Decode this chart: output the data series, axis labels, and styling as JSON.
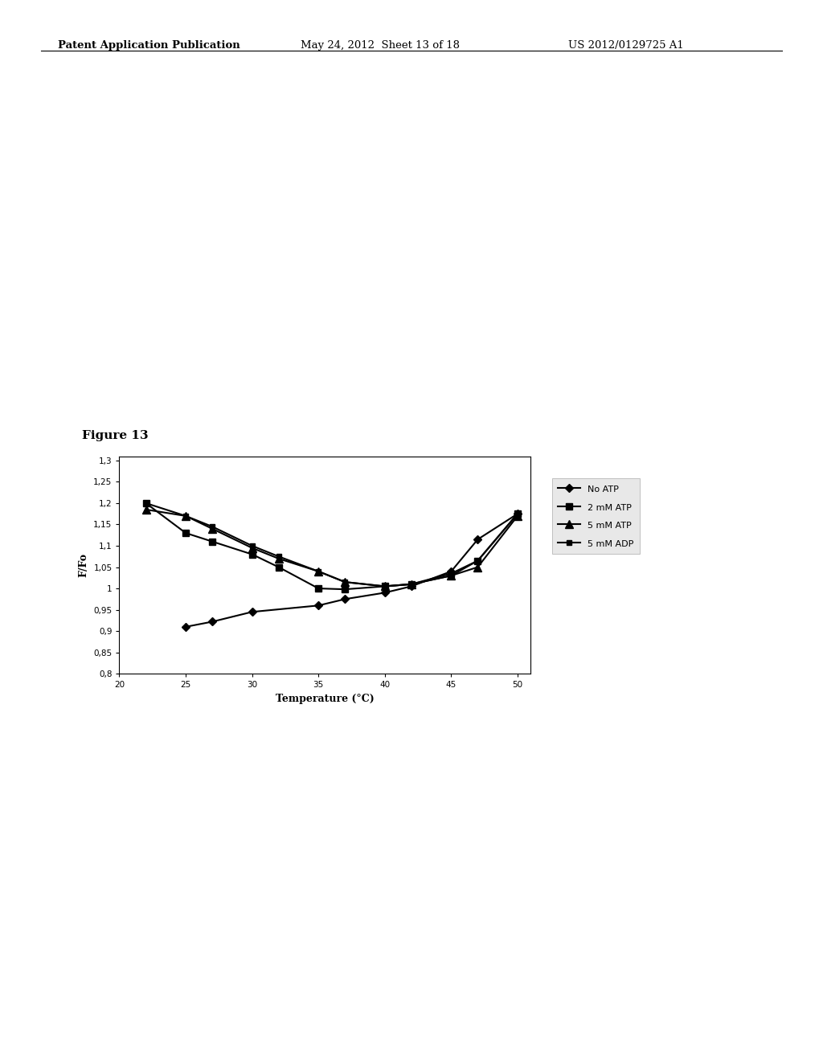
{
  "figure_label": "Figure 13",
  "xlabel": "Temperature (°C)",
  "ylabel": "F/Fo",
  "xlim": [
    20,
    51
  ],
  "ylim": [
    0.8,
    1.31
  ],
  "xticks": [
    20,
    25,
    30,
    35,
    40,
    45,
    50
  ],
  "yticks": [
    0.8,
    0.85,
    0.9,
    0.95,
    1.0,
    1.05,
    1.1,
    1.15,
    1.2,
    1.25,
    1.3
  ],
  "ytick_labels": [
    "0,8",
    "0,85",
    "0,9",
    "0,95",
    "1",
    "1,05",
    "1,1",
    "1,15",
    "1,2",
    "1,25",
    "1,3"
  ],
  "header_left": "Patent Application Publication",
  "header_mid": "May 24, 2012  Sheet 13 of 18",
  "header_right": "US 2012/0129725 A1",
  "series": [
    {
      "label": "No ATP",
      "x": [
        25,
        27,
        30,
        35,
        37,
        40,
        42,
        45,
        47,
        50
      ],
      "y": [
        0.91,
        0.922,
        0.945,
        0.96,
        0.975,
        0.99,
        1.005,
        1.04,
        1.115,
        1.175
      ],
      "marker": "D",
      "markersize": 5,
      "color": "#000000",
      "linewidth": 1.5
    },
    {
      "label": "2 mM ATP",
      "x": [
        22,
        25,
        27,
        30,
        32,
        35,
        37,
        40,
        42,
        45,
        47,
        50
      ],
      "y": [
        1.2,
        1.13,
        1.11,
        1.08,
        1.05,
        1.0,
        0.998,
        1.005,
        1.01,
        1.035,
        1.065,
        1.175
      ],
      "marker": "s",
      "markersize": 6,
      "color": "#000000",
      "linewidth": 1.5
    },
    {
      "label": "5 mM ATP",
      "x": [
        22,
        25,
        27,
        30,
        32,
        35,
        37,
        40,
        42,
        45,
        47,
        50
      ],
      "y": [
        1.185,
        1.17,
        1.14,
        1.095,
        1.07,
        1.04,
        1.015,
        1.005,
        1.01,
        1.03,
        1.05,
        1.17
      ],
      "marker": "^",
      "markersize": 7,
      "color": "#000000",
      "linewidth": 1.5
    },
    {
      "label": "5 mM ADP",
      "x": [
        22,
        25,
        27,
        30,
        32,
        35,
        37,
        40,
        42,
        45,
        47,
        50
      ],
      "y": [
        1.2,
        1.17,
        1.145,
        1.1,
        1.075,
        1.04,
        1.015,
        1.005,
        1.01,
        1.03,
        1.065,
        1.175
      ],
      "marker": "s",
      "markersize": 5,
      "color": "#000000",
      "linewidth": 1.5
    }
  ],
  "background_color": "#ffffff",
  "plot_bg_color": "#ffffff",
  "fig_width": 10.24,
  "fig_height": 13.2,
  "dpi": 100
}
